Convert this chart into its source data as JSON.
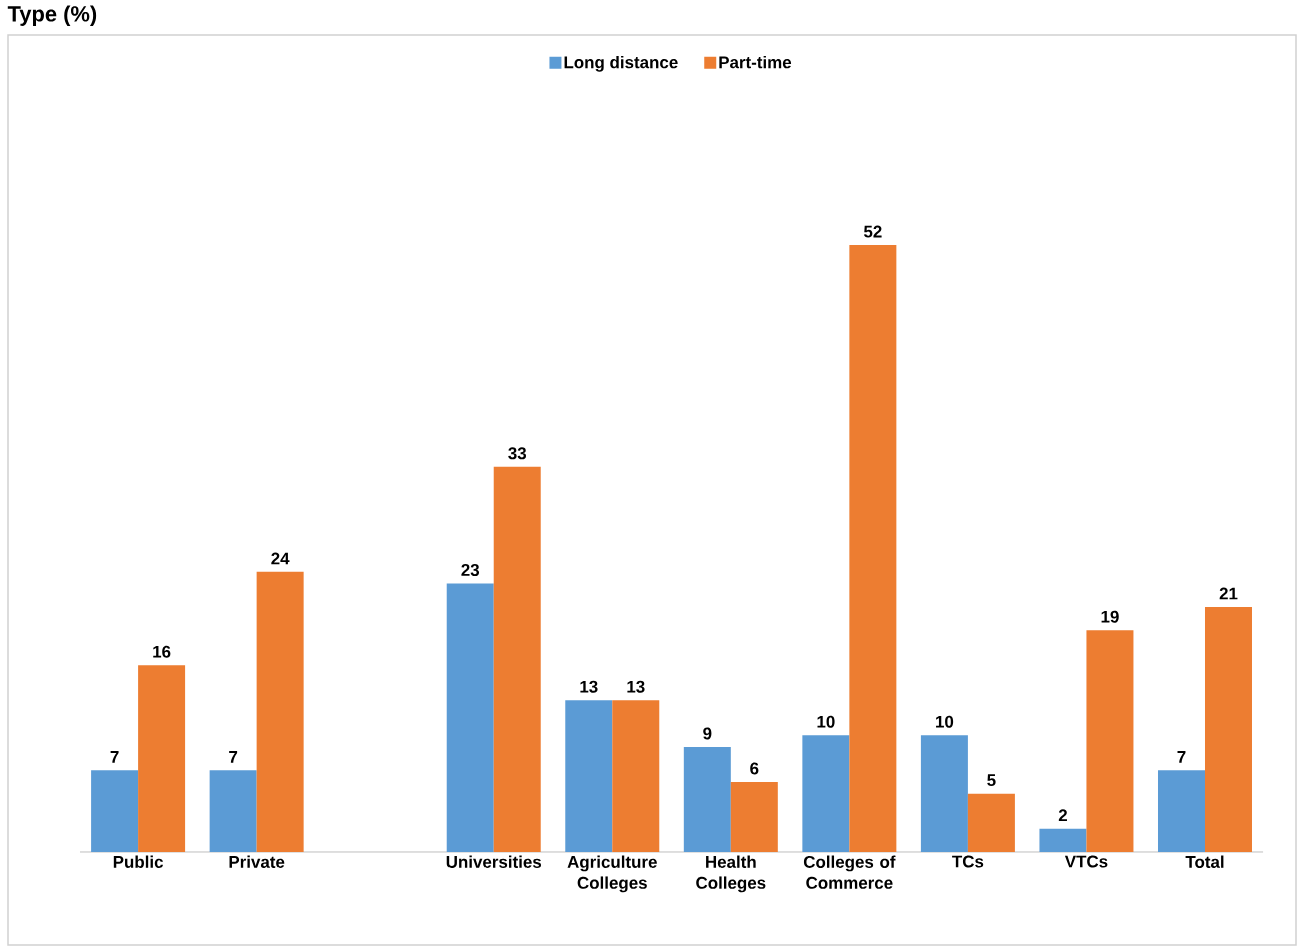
{
  "chart_data": {
    "type": "bar",
    "title": "Type (%)",
    "categories": [
      "Public",
      "Private",
      null,
      "Universities",
      "Agriculture Colleges",
      "Health Colleges",
      "Colleges of Commerce",
      "TCs",
      "VTCs",
      "Total"
    ],
    "series": [
      {
        "name": "Long distance",
        "color": "#5b9bd5",
        "values": [
          7,
          7,
          null,
          23,
          13,
          9,
          10,
          10,
          2,
          7
        ]
      },
      {
        "name": "Part-time",
        "color": "#ed7d31",
        "values": [
          16,
          24,
          null,
          33,
          13,
          6,
          52,
          5,
          19,
          21
        ]
      }
    ],
    "data_labels": true,
    "legend": "top"
  }
}
